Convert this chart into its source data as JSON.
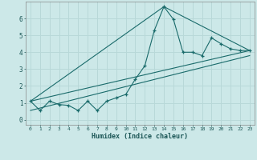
{
  "xlabel": "Humidex (Indice chaleur)",
  "bg_color": "#cce8e8",
  "grid_color": "#b8d8d8",
  "line_color": "#1a6b6b",
  "x_ticks": [
    0,
    1,
    2,
    3,
    4,
    5,
    6,
    7,
    8,
    9,
    10,
    11,
    12,
    13,
    14,
    15,
    16,
    17,
    18,
    19,
    20,
    21,
    22,
    23
  ],
  "xlim": [
    -0.5,
    23.5
  ],
  "ylim": [
    -0.3,
    7.0
  ],
  "y_ticks": [
    0,
    1,
    2,
    3,
    4,
    5,
    6
  ],
  "series": [
    {
      "x": [
        0,
        1,
        2,
        3,
        4,
        5,
        6,
        7,
        8,
        9,
        10,
        11,
        12,
        13,
        14,
        15,
        16,
        17,
        18,
        19,
        20,
        21,
        22,
        23
      ],
      "y": [
        1.1,
        0.55,
        1.1,
        0.9,
        0.85,
        0.55,
        1.1,
        0.55,
        1.1,
        1.3,
        1.5,
        2.4,
        3.2,
        5.3,
        6.7,
        5.95,
        4.0,
        4.0,
        3.8,
        4.85,
        4.5,
        4.2,
        4.1,
        4.1
      ],
      "marker": "+"
    },
    {
      "x": [
        0,
        23
      ],
      "y": [
        1.1,
        4.1
      ],
      "marker": null
    },
    {
      "x": [
        0,
        23
      ],
      "y": [
        0.55,
        3.8
      ],
      "marker": null
    },
    {
      "x": [
        0,
        14,
        23
      ],
      "y": [
        1.1,
        6.7,
        4.1
      ],
      "marker": null
    }
  ]
}
